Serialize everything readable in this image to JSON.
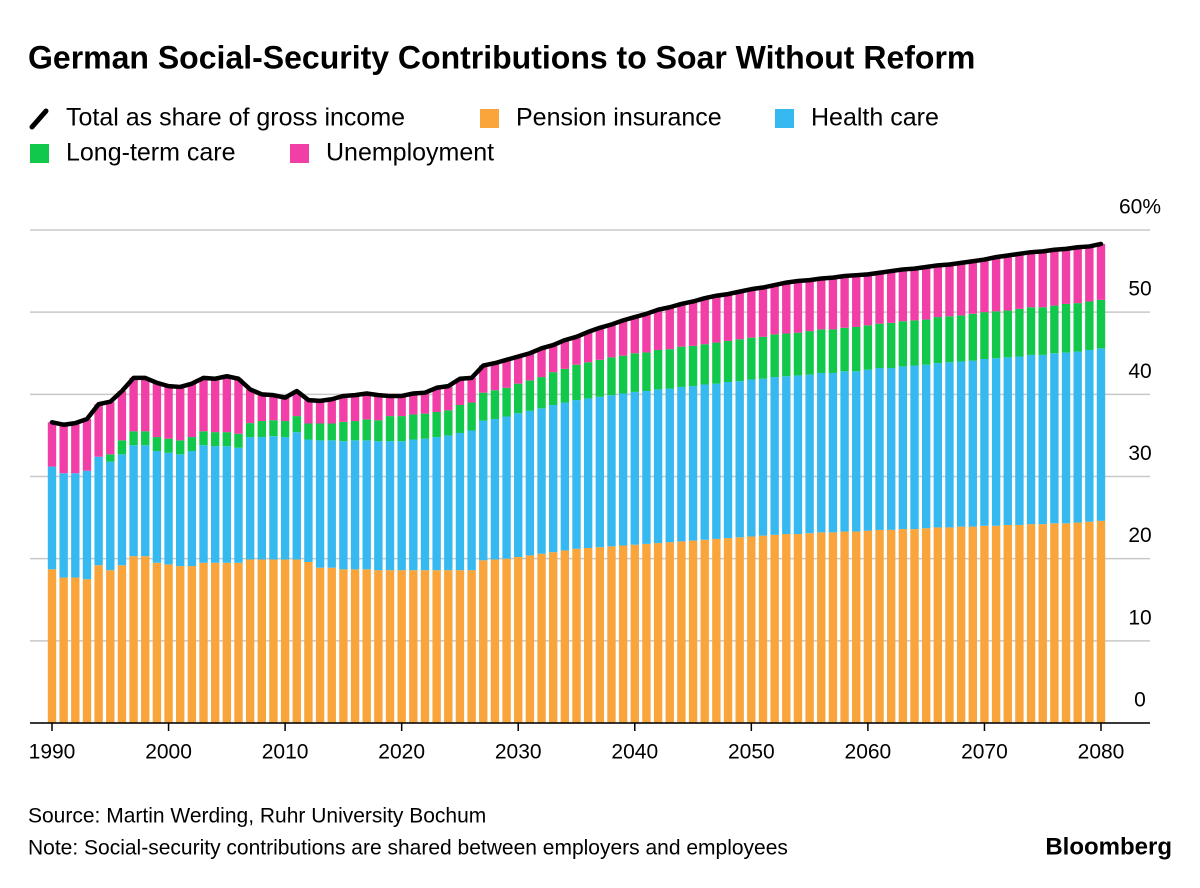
{
  "chart_data": {
    "type": "stacked-bar",
    "title": "German Social-Security Contributions to Soar Without Reform",
    "source": "Source: Martin Werding, Ruhr University Bochum",
    "note": "Note: Social-security contributions are shared between employers and employees",
    "brand": "Bloomberg",
    "x": [
      1990,
      1991,
      1992,
      1993,
      1994,
      1995,
      1996,
      1997,
      1998,
      1999,
      2000,
      2001,
      2002,
      2003,
      2004,
      2005,
      2006,
      2007,
      2008,
      2009,
      2010,
      2011,
      2012,
      2013,
      2014,
      2015,
      2016,
      2017,
      2018,
      2019,
      2020,
      2021,
      2022,
      2023,
      2024,
      2025,
      2026,
      2027,
      2028,
      2029,
      2030,
      2031,
      2032,
      2033,
      2034,
      2035,
      2036,
      2037,
      2038,
      2039,
      2040,
      2041,
      2042,
      2043,
      2044,
      2045,
      2046,
      2047,
      2048,
      2049,
      2050,
      2051,
      2052,
      2053,
      2054,
      2055,
      2056,
      2057,
      2058,
      2059,
      2060,
      2061,
      2062,
      2063,
      2064,
      2065,
      2066,
      2067,
      2068,
      2069,
      2070,
      2071,
      2072,
      2073,
      2074,
      2075,
      2076,
      2077,
      2078,
      2079,
      2080
    ],
    "series": [
      {
        "name": "Total as share of gross income",
        "type": "line",
        "color": "#000000",
        "values": [
          36.6,
          36.3,
          36.5,
          37.0,
          38.8,
          39.1,
          40.4,
          42.0,
          42.0,
          41.4,
          41.0,
          40.9,
          41.3,
          42.0,
          41.9,
          42.2,
          41.9,
          40.6,
          40.0,
          39.9,
          39.6,
          40.4,
          39.3,
          39.2,
          39.4,
          39.8,
          39.9,
          40.1,
          39.9,
          39.8,
          39.8,
          40.1,
          40.2,
          40.8,
          41.0,
          41.9,
          42.0,
          43.5,
          43.8,
          44.2,
          44.6,
          45.0,
          45.6,
          46.0,
          46.6,
          47.0,
          47.6,
          48.1,
          48.5,
          49.0,
          49.4,
          49.8,
          50.3,
          50.6,
          51.0,
          51.3,
          51.7,
          52.0,
          52.2,
          52.5,
          52.8,
          53.0,
          53.3,
          53.6,
          53.8,
          53.9,
          54.1,
          54.2,
          54.4,
          54.5,
          54.6,
          54.8,
          55.0,
          55.2,
          55.3,
          55.5,
          55.7,
          55.8,
          56.0,
          56.2,
          56.4,
          56.7,
          56.9,
          57.1,
          57.3,
          57.4,
          57.6,
          57.7,
          57.9,
          58.0,
          58.3
        ]
      },
      {
        "name": "Pension insurance",
        "color": "#f9a53b",
        "values": [
          18.7,
          17.7,
          17.7,
          17.5,
          19.2,
          18.6,
          19.2,
          20.3,
          20.3,
          19.5,
          19.3,
          19.1,
          19.1,
          19.5,
          19.5,
          19.5,
          19.5,
          19.9,
          19.9,
          19.9,
          19.9,
          19.9,
          19.6,
          18.9,
          18.9,
          18.7,
          18.7,
          18.7,
          18.6,
          18.6,
          18.6,
          18.6,
          18.6,
          18.6,
          18.6,
          18.6,
          18.6,
          19.8,
          19.9,
          20.0,
          20.2,
          20.4,
          20.6,
          20.8,
          21.0,
          21.2,
          21.3,
          21.4,
          21.5,
          21.6,
          21.7,
          21.8,
          21.9,
          22.0,
          22.1,
          22.2,
          22.3,
          22.4,
          22.5,
          22.6,
          22.7,
          22.8,
          22.9,
          23.0,
          23.0,
          23.1,
          23.2,
          23.2,
          23.3,
          23.3,
          23.4,
          23.5,
          23.5,
          23.6,
          23.6,
          23.7,
          23.8,
          23.8,
          23.9,
          23.9,
          24.0,
          24.0,
          24.1,
          24.1,
          24.2,
          24.2,
          24.3,
          24.3,
          24.4,
          24.5,
          24.6
        ]
      },
      {
        "name": "Health care",
        "color": "#36b9f0",
        "values": [
          12.5,
          12.7,
          12.7,
          13.2,
          13.2,
          13.2,
          13.5,
          13.5,
          13.5,
          13.6,
          13.6,
          13.6,
          14.0,
          14.3,
          14.2,
          14.2,
          14.0,
          14.9,
          14.9,
          15.0,
          14.9,
          15.5,
          14.9,
          15.5,
          15.5,
          15.6,
          15.7,
          15.7,
          15.7,
          15.7,
          15.7,
          15.9,
          16.0,
          16.2,
          16.4,
          16.7,
          17.0,
          17.0,
          17.1,
          17.3,
          17.5,
          17.6,
          17.7,
          17.9,
          18.0,
          18.1,
          18.2,
          18.3,
          18.4,
          18.5,
          18.6,
          18.6,
          18.7,
          18.7,
          18.8,
          18.8,
          18.9,
          18.9,
          19.0,
          19.0,
          19.1,
          19.1,
          19.2,
          19.2,
          19.3,
          19.3,
          19.4,
          19.4,
          19.5,
          19.5,
          19.6,
          19.7,
          19.7,
          19.8,
          19.9,
          19.9,
          20.0,
          20.1,
          20.1,
          20.2,
          20.3,
          20.4,
          20.4,
          20.5,
          20.6,
          20.6,
          20.7,
          20.8,
          20.8,
          20.9,
          21.0
        ]
      },
      {
        "name": "Long-term care",
        "color": "#11c84a",
        "values": [
          0,
          0,
          0,
          0,
          0,
          0.9,
          1.7,
          1.7,
          1.7,
          1.7,
          1.7,
          1.7,
          1.7,
          1.7,
          1.7,
          1.7,
          1.7,
          1.7,
          1.95,
          1.95,
          1.95,
          1.95,
          1.95,
          2.05,
          2.05,
          2.35,
          2.35,
          2.55,
          2.55,
          3.05,
          3.05,
          3.05,
          3.05,
          3.05,
          3.05,
          3.4,
          3.4,
          3.4,
          3.5,
          3.5,
          3.6,
          3.7,
          3.8,
          4.0,
          4.1,
          4.3,
          4.4,
          4.5,
          4.6,
          4.6,
          4.7,
          4.7,
          4.8,
          4.8,
          4.9,
          4.9,
          4.9,
          5.0,
          5.0,
          5.1,
          5.1,
          5.1,
          5.2,
          5.2,
          5.2,
          5.3,
          5.3,
          5.3,
          5.3,
          5.4,
          5.4,
          5.4,
          5.5,
          5.5,
          5.5,
          5.5,
          5.6,
          5.6,
          5.6,
          5.7,
          5.7,
          5.7,
          5.7,
          5.8,
          5.8,
          5.8,
          5.8,
          5.9,
          5.9,
          5.9,
          5.9
        ]
      },
      {
        "name": "Unemployment",
        "color": "#f23fa8",
        "values": [
          5.4,
          5.9,
          6.1,
          6.3,
          6.4,
          6.4,
          6.0,
          6.5,
          6.5,
          6.6,
          6.4,
          6.5,
          6.5,
          6.5,
          6.5,
          6.8,
          6.7,
          4.1,
          3.25,
          3.05,
          2.85,
          3.05,
          2.85,
          2.75,
          2.95,
          3.15,
          3.15,
          3.15,
          3.05,
          2.45,
          2.45,
          2.55,
          2.55,
          2.95,
          2.95,
          3.2,
          3.0,
          3.3,
          3.3,
          3.4,
          3.3,
          3.3,
          3.5,
          3.3,
          3.5,
          3.4,
          3.7,
          3.9,
          4.0,
          4.3,
          4.4,
          4.7,
          4.9,
          5.1,
          5.2,
          5.4,
          5.6,
          5.7,
          5.7,
          5.8,
          5.9,
          6.0,
          6.0,
          6.2,
          6.3,
          6.2,
          6.2,
          6.3,
          6.3,
          6.3,
          6.2,
          6.2,
          6.3,
          6.3,
          6.3,
          6.4,
          6.3,
          6.3,
          6.4,
          6.4,
          6.4,
          6.6,
          6.7,
          6.7,
          6.7,
          6.8,
          6.8,
          6.7,
          6.8,
          6.7,
          6.8
        ]
      }
    ],
    "xlim": [
      1990,
      2080
    ],
    "xticks": [
      1990,
      2000,
      2010,
      2020,
      2030,
      2040,
      2050,
      2060,
      2070,
      2080
    ],
    "ylim": [
      0,
      60
    ],
    "yticks": [
      0,
      10,
      20,
      30,
      40,
      50,
      {
        "value": 60,
        "label": "60%"
      }
    ],
    "grid": true
  }
}
